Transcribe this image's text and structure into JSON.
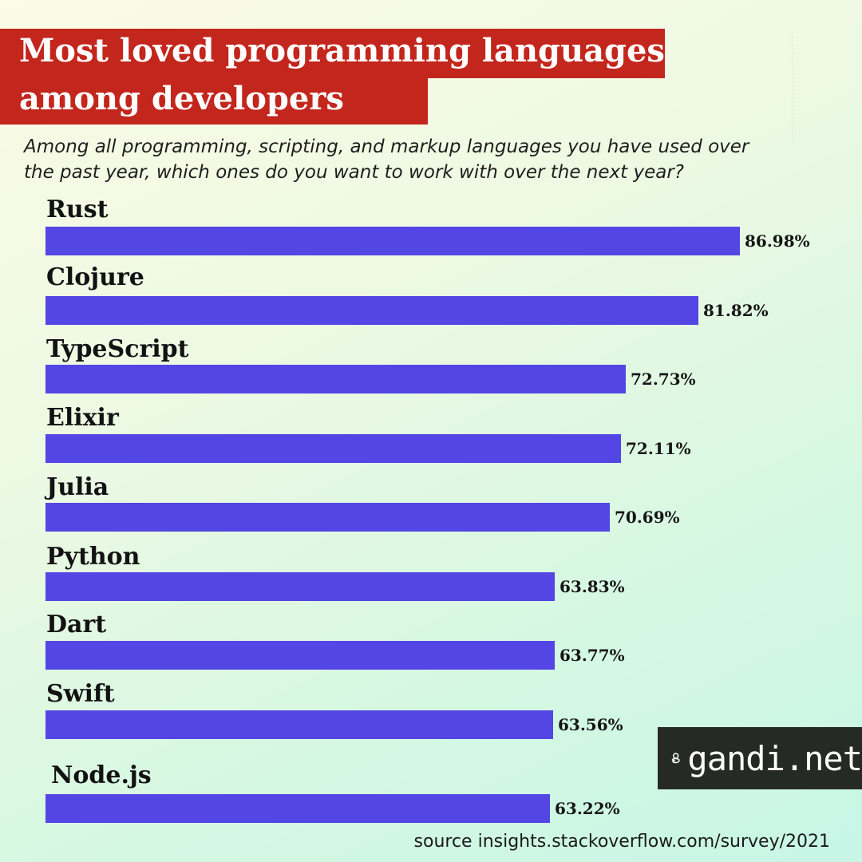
{
  "title_line1": "Most loved programming languages",
  "title_line2": "among developers",
  "subtitle_line1": "Among all programming, scripting, and markup languages you have used over",
  "subtitle_line2": "the past year, which ones do you want to work with over the next year?",
  "brand": {
    "name": "gandi.net",
    "icon": "gandi-logo-icon"
  },
  "source": "source insights.stackoverflow.com/survey/2021",
  "colors": {
    "bar": "#5446e4",
    "title_band": "#c3261c",
    "brand_bg": "#262a27"
  },
  "chart_data": {
    "type": "bar",
    "orientation": "horizontal",
    "title": "Most loved programming languages among developers",
    "subtitle": "Among all programming, scripting, and markup languages you have used over the past year, which ones do you want to work with over the next year?",
    "categories": [
      "Rust",
      "Clojure",
      "TypeScript",
      "Elixir",
      "Julia",
      "Python",
      "Dart",
      "Swift",
      "Node.js"
    ],
    "values": [
      86.98,
      81.82,
      72.73,
      72.11,
      70.69,
      63.83,
      63.77,
      63.56,
      63.22
    ],
    "value_labels": [
      "86.98%",
      "81.82%",
      "72.73%",
      "72.11%",
      "70.69%",
      "63.83%",
      "63.77%",
      "63.56%",
      "63.22%"
    ],
    "unit": "%",
    "xlim": [
      0,
      100
    ],
    "grid": false,
    "legend": "none"
  }
}
